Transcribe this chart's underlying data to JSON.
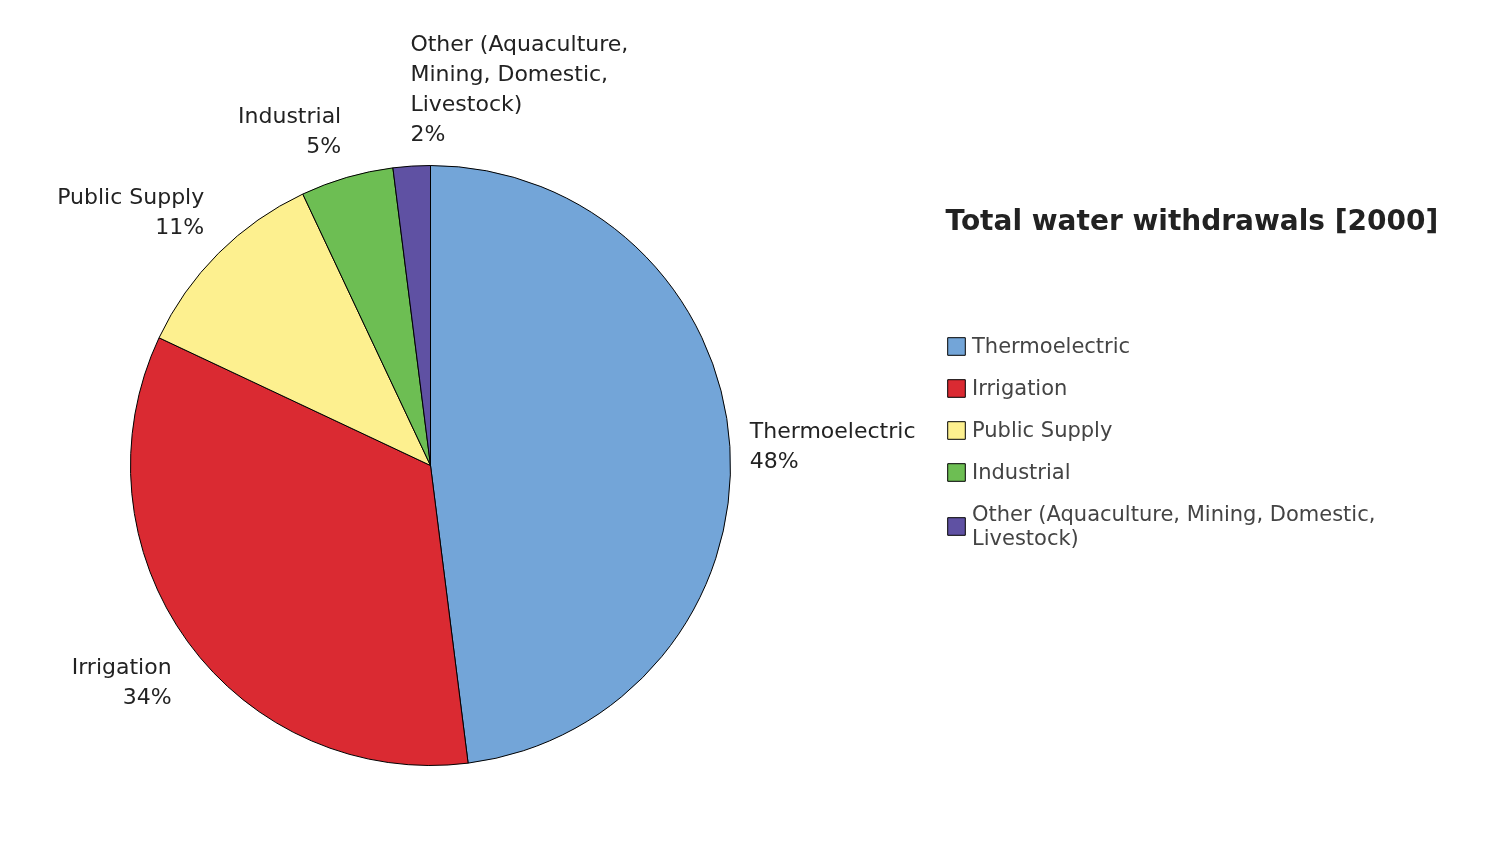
{
  "chart_data": {
    "type": "pie",
    "title": "Total water withdrawals [2000]",
    "categories": [
      "Thermoelectric",
      "Irrigation",
      "Public Supply",
      "Industrial",
      "Other (Aquaculture, Mining, Domestic, Livestock)"
    ],
    "values": [
      48,
      34,
      11,
      5,
      2
    ],
    "colors": [
      "#73a5d8",
      "#da2a32",
      "#fdf08f",
      "#6dbe53",
      "#5f51a3"
    ],
    "value_labels": [
      "48%",
      "34%",
      "11%",
      "5%",
      "2%"
    ],
    "legend": "right"
  }
}
